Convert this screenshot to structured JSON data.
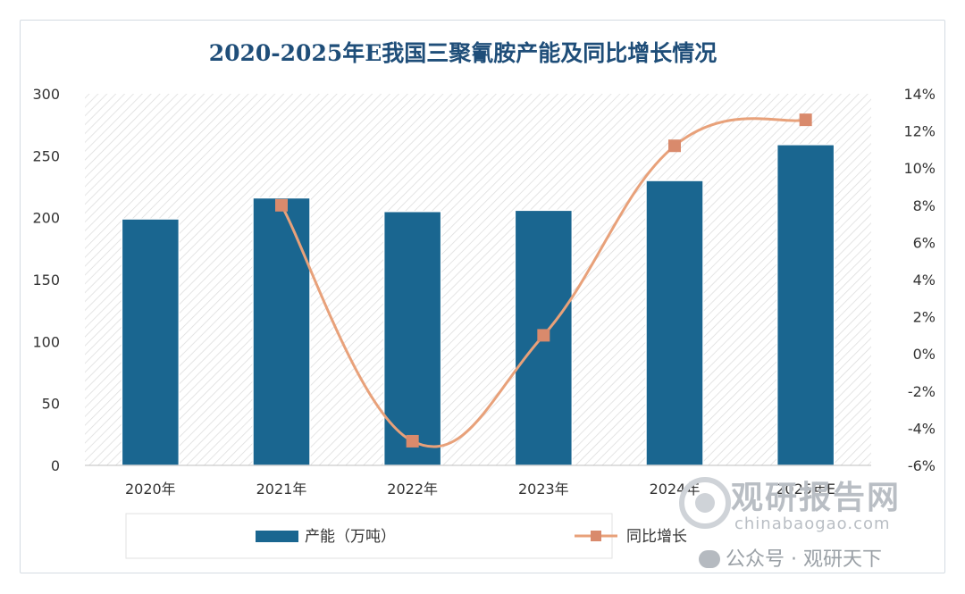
{
  "chart_data": {
    "type": "bar+line",
    "title": "2020-2025年E我国三聚氰胺产能及同比增长情况",
    "categories": [
      "2020年",
      "2021年",
      "2022年",
      "2023年",
      "2024年",
      "2025年E"
    ],
    "series": [
      {
        "name": "产能（万吨）",
        "type": "bar",
        "axis": "left",
        "color": "#1a6690",
        "values": [
          199,
          216,
          205,
          206,
          230,
          259
        ]
      },
      {
        "name": "同比增长",
        "type": "line",
        "axis": "right",
        "color": "#e8a17a",
        "marker_color": "#d98a6c",
        "values": [
          null,
          8.0,
          -4.7,
          1.0,
          11.2,
          12.6
        ]
      }
    ],
    "left_axis": {
      "ylim": [
        0,
        300
      ],
      "ticks": [
        "0",
        "50",
        "100",
        "150",
        "200",
        "250",
        "300"
      ]
    },
    "right_axis": {
      "ylim": [
        -6,
        14
      ],
      "ticks": [
        "-6%",
        "-4%",
        "-2%",
        "0%",
        "2%",
        "4%",
        "6%",
        "8%",
        "10%",
        "12%",
        "14%"
      ]
    },
    "legend_position": "bottom",
    "grid": false
  },
  "watermark": {
    "brand": "观研报告网",
    "url": "chinabaogao.com",
    "wechat": "公众号 · 观研天下"
  }
}
